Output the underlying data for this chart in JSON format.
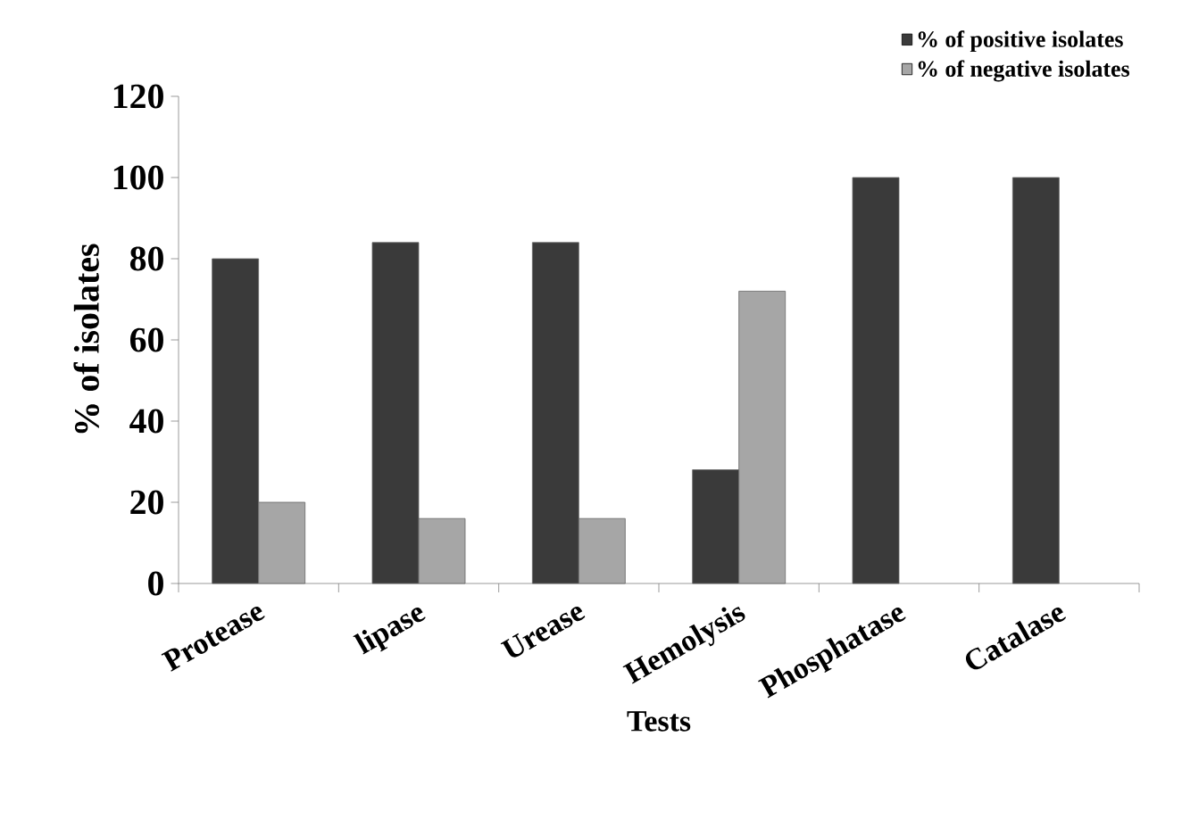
{
  "chart_data": {
    "type": "bar",
    "xlabel": "Tests",
    "ylabel": "% of isolates",
    "categories": [
      "Protease",
      "lipase",
      "Urease",
      "Hemolysis",
      "Phosphatase",
      "Catalase"
    ],
    "series": [
      {
        "name": "% of positive isolates",
        "color": "#3a3a3a",
        "values": [
          80,
          84,
          84,
          28,
          100,
          100
        ]
      },
      {
        "name": "% of negative isolates",
        "color": "#a6a6a6",
        "values": [
          20,
          16,
          16,
          72,
          null,
          null
        ]
      }
    ],
    "ylim": [
      0,
      120
    ],
    "yticks": [
      0,
      20,
      40,
      60,
      80,
      100,
      120
    ],
    "legend": "top right"
  }
}
